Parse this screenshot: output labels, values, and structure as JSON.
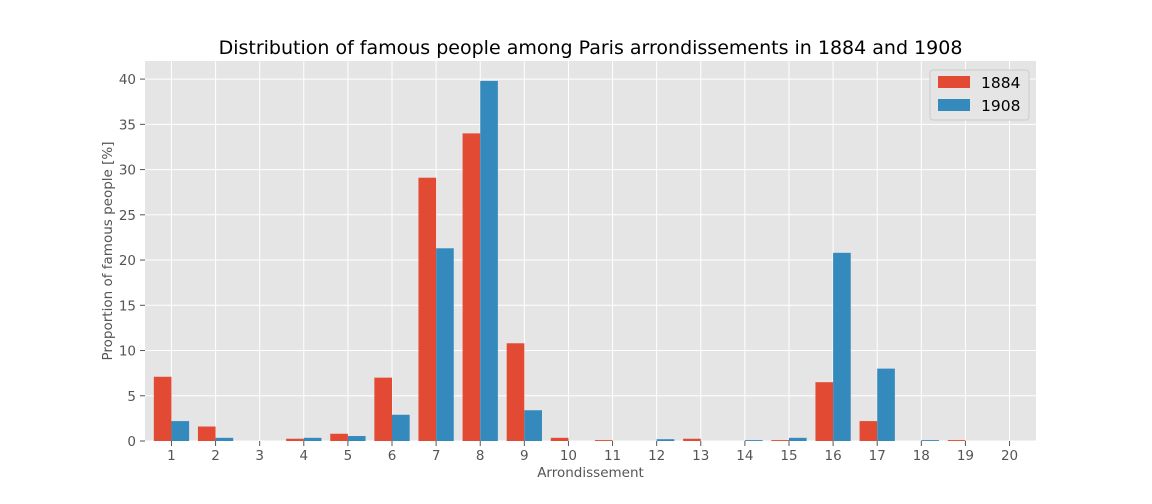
{
  "chart_data": {
    "type": "bar",
    "title": "Distribution of famous people among Paris arrondissements in 1884 and 1908",
    "xlabel": "Arrondissement",
    "ylabel": "Proportion of famous people [%]",
    "categories": [
      "1",
      "2",
      "3",
      "4",
      "5",
      "6",
      "7",
      "8",
      "9",
      "10",
      "11",
      "12",
      "13",
      "14",
      "15",
      "16",
      "17",
      "18",
      "19",
      "20"
    ],
    "series": [
      {
        "name": "1884",
        "color": "#E24A33",
        "values": [
          7.1,
          1.6,
          0,
          0.25,
          0.8,
          7.0,
          29.1,
          34.0,
          10.8,
          0.35,
          0.1,
          0,
          0.25,
          0,
          0.1,
          6.5,
          2.2,
          0,
          0.1,
          0
        ]
      },
      {
        "name": "1908",
        "color": "#348ABD",
        "values": [
          2.2,
          0.35,
          0,
          0.35,
          0.55,
          2.9,
          21.3,
          39.8,
          3.4,
          0,
          0,
          0.2,
          0,
          0.1,
          0.35,
          20.8,
          8.0,
          0.1,
          0,
          0
        ]
      }
    ],
    "ylim": [
      0,
      42
    ],
    "yticks": [
      0,
      5,
      10,
      15,
      20,
      25,
      30,
      35,
      40
    ],
    "grid": true,
    "legend": "top-right",
    "background": "#E5E5E5",
    "grid_color": "#FFFFFF"
  }
}
